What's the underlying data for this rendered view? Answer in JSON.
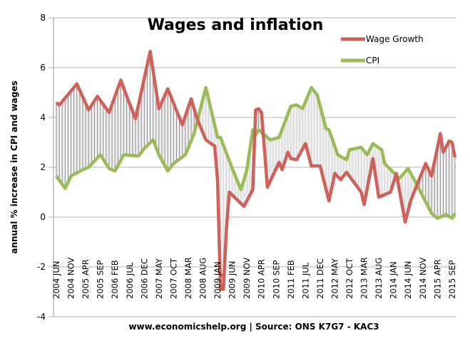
{
  "chart_data": {
    "type": "line",
    "title": "Wages and inflation",
    "ylabel": "annual % increase in CPI and wages",
    "xlabel": "",
    "source": "www.economicshelp.org | Source: ONS K7G7 - KAC3",
    "ylim": [
      -4,
      8
    ],
    "yticks": [
      "8",
      "6",
      "4",
      "2",
      "0",
      "-2",
      "-4"
    ],
    "grid": true,
    "legend_position": "top-right",
    "x_tick_labels": [
      "2004 JUN",
      "2004 NOV",
      "2005 APR",
      "2005 SEP",
      "2006 FEB",
      "2006 JUL",
      "2006 DEC",
      "2007 MAY",
      "2007 OCT",
      "2008 MAR",
      "2008 AUG",
      "2009 JAN",
      "2009 JUN",
      "2009 NOV",
      "2010 APR",
      "2010 SEP",
      "2011 FEB",
      "2011 JUL",
      "2011 DEC",
      "2012 MAY",
      "2012 OCT",
      "2013 MAR",
      "2013 AUG",
      "2014 JAN",
      "2014 JUN",
      "2014 NOV",
      "2015 APR",
      "2015 SEP"
    ],
    "x_range": [
      "2004-06",
      "2015-10"
    ],
    "series": [
      {
        "name": "Wage Growth",
        "color": "#d0605a",
        "points": [
          [
            "2004-06",
            4.6
          ],
          [
            "2004-07",
            4.5
          ],
          [
            "2004-12",
            5.2
          ],
          [
            "2005-01",
            5.35
          ],
          [
            "2005-05",
            4.3
          ],
          [
            "2005-08",
            4.85
          ],
          [
            "2005-12",
            4.2
          ],
          [
            "2006-04",
            5.5
          ],
          [
            "2006-06",
            4.85
          ],
          [
            "2006-09",
            3.95
          ],
          [
            "2007-02",
            6.65
          ],
          [
            "2007-05",
            4.35
          ],
          [
            "2007-08",
            5.15
          ],
          [
            "2008-01",
            3.7
          ],
          [
            "2008-04",
            4.75
          ],
          [
            "2008-06",
            3.95
          ],
          [
            "2008-09",
            3.1
          ],
          [
            "2008-12",
            2.85
          ],
          [
            "2009-01",
            1.5
          ],
          [
            "2009-02",
            -2.9
          ],
          [
            "2009-03",
            -2.9
          ],
          [
            "2009-04",
            -0.5
          ],
          [
            "2009-05",
            1.0
          ],
          [
            "2009-10",
            0.43
          ],
          [
            "2010-01",
            1.1
          ],
          [
            "2010-02",
            4.3
          ],
          [
            "2010-03",
            4.35
          ],
          [
            "2010-04",
            4.2
          ],
          [
            "2010-06",
            1.2
          ],
          [
            "2010-10",
            2.2
          ],
          [
            "2010-11",
            1.9
          ],
          [
            "2011-01",
            2.6
          ],
          [
            "2011-02",
            2.35
          ],
          [
            "2011-04",
            2.3
          ],
          [
            "2011-07",
            2.95
          ],
          [
            "2011-09",
            2.05
          ],
          [
            "2011-12",
            2.05
          ],
          [
            "2012-03",
            0.65
          ],
          [
            "2012-05",
            1.75
          ],
          [
            "2012-07",
            1.5
          ],
          [
            "2012-09",
            1.8
          ],
          [
            "2013-02",
            1.0
          ],
          [
            "2013-03",
            0.5
          ],
          [
            "2013-06",
            2.35
          ],
          [
            "2013-08",
            0.8
          ],
          [
            "2013-12",
            1.0
          ],
          [
            "2014-02",
            1.75
          ],
          [
            "2014-05",
            -0.2
          ],
          [
            "2014-07",
            0.7
          ],
          [
            "2014-12",
            2.15
          ],
          [
            "2015-02",
            1.65
          ],
          [
            "2015-05",
            3.35
          ],
          [
            "2015-06",
            2.6
          ],
          [
            "2015-08",
            3.05
          ],
          [
            "2015-09",
            3.0
          ],
          [
            "2015-10",
            2.4
          ]
        ]
      },
      {
        "name": "CPI",
        "color": "#9bbb59",
        "points": [
          [
            "2004-06",
            1.65
          ],
          [
            "2004-09",
            1.15
          ],
          [
            "2004-11",
            1.65
          ],
          [
            "2005-03",
            1.9
          ],
          [
            "2005-05",
            2.0
          ],
          [
            "2005-09",
            2.5
          ],
          [
            "2005-12",
            1.95
          ],
          [
            "2006-02",
            1.85
          ],
          [
            "2006-05",
            2.5
          ],
          [
            "2006-10",
            2.45
          ],
          [
            "2006-12",
            2.75
          ],
          [
            "2007-03",
            3.1
          ],
          [
            "2007-05",
            2.5
          ],
          [
            "2007-08",
            1.85
          ],
          [
            "2007-10",
            2.15
          ],
          [
            "2008-02",
            2.5
          ],
          [
            "2008-05",
            3.35
          ],
          [
            "2008-09",
            5.2
          ],
          [
            "2008-11",
            4.2
          ],
          [
            "2009-01",
            3.2
          ],
          [
            "2009-02",
            3.2
          ],
          [
            "2009-06",
            1.95
          ],
          [
            "2009-09",
            1.1
          ],
          [
            "2009-11",
            1.9
          ],
          [
            "2010-01",
            3.5
          ],
          [
            "2010-02",
            3.3
          ],
          [
            "2010-03",
            3.5
          ],
          [
            "2010-07",
            3.1
          ],
          [
            "2010-10",
            3.2
          ],
          [
            "2011-02",
            4.45
          ],
          [
            "2011-04",
            4.5
          ],
          [
            "2011-06",
            4.35
          ],
          [
            "2011-09",
            5.2
          ],
          [
            "2011-11",
            4.9
          ],
          [
            "2012-02",
            3.55
          ],
          [
            "2012-03",
            3.5
          ],
          [
            "2012-06",
            2.5
          ],
          [
            "2012-09",
            2.3
          ],
          [
            "2012-10",
            2.7
          ],
          [
            "2013-02",
            2.8
          ],
          [
            "2013-04",
            2.5
          ],
          [
            "2013-06",
            2.95
          ],
          [
            "2013-09",
            2.7
          ],
          [
            "2013-10",
            2.15
          ],
          [
            "2014-03",
            1.55
          ],
          [
            "2014-06",
            1.95
          ],
          [
            "2014-09",
            1.3
          ],
          [
            "2015-02",
            0.15
          ],
          [
            "2015-04",
            -0.05
          ],
          [
            "2015-07",
            0.1
          ],
          [
            "2015-09",
            -0.05
          ],
          [
            "2015-10",
            0.15
          ]
        ]
      }
    ]
  }
}
